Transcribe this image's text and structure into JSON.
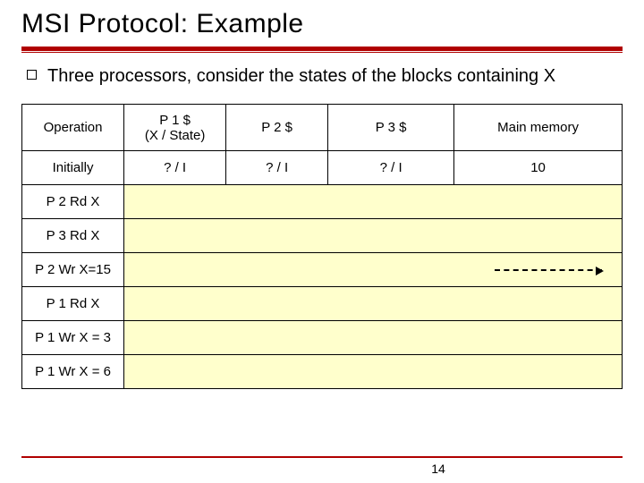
{
  "title": "MSI Protocol: Example",
  "bullet": "Three processors, consider the states of the blocks containing X",
  "table": {
    "headers": {
      "operation": "Operation",
      "p1": "P 1 $\n(X / State)",
      "p2": "P 2 $",
      "p3": "P 3 $",
      "mm": "Main memory"
    },
    "rows": [
      {
        "op": "Initially",
        "p1": "? / I",
        "p2": "? / I",
        "p3": "? / I",
        "mm": "10",
        "covered": false
      },
      {
        "op": "P 2 Rd X",
        "p1": "",
        "p2": "",
        "p3": "",
        "mm": "",
        "covered": true,
        "arrow": false
      },
      {
        "op": "P 3 Rd X",
        "p1": "",
        "p2": "",
        "p3": "",
        "mm": "",
        "covered": true,
        "arrow": false
      },
      {
        "op": "P 2 Wr X=15",
        "p1": "",
        "p2": "",
        "p3": "",
        "mm": "",
        "covered": true,
        "arrow": true
      },
      {
        "op": "P 1 Rd X",
        "p1": "",
        "p2": "",
        "p3": "",
        "mm": "",
        "covered": true,
        "arrow": false
      },
      {
        "op": "P 1 Wr X = 3",
        "p1": "",
        "p2": "",
        "p3": "",
        "mm": "",
        "covered": true,
        "arrow": false
      },
      {
        "op": "P 1 Wr X = 6",
        "p1": "",
        "p2": "",
        "p3": "",
        "mm": "",
        "covered": true,
        "arrow": false
      }
    ]
  },
  "pageNumber": "14",
  "colors": {
    "accent": "#b00000",
    "highlight": "#ffffcc"
  }
}
